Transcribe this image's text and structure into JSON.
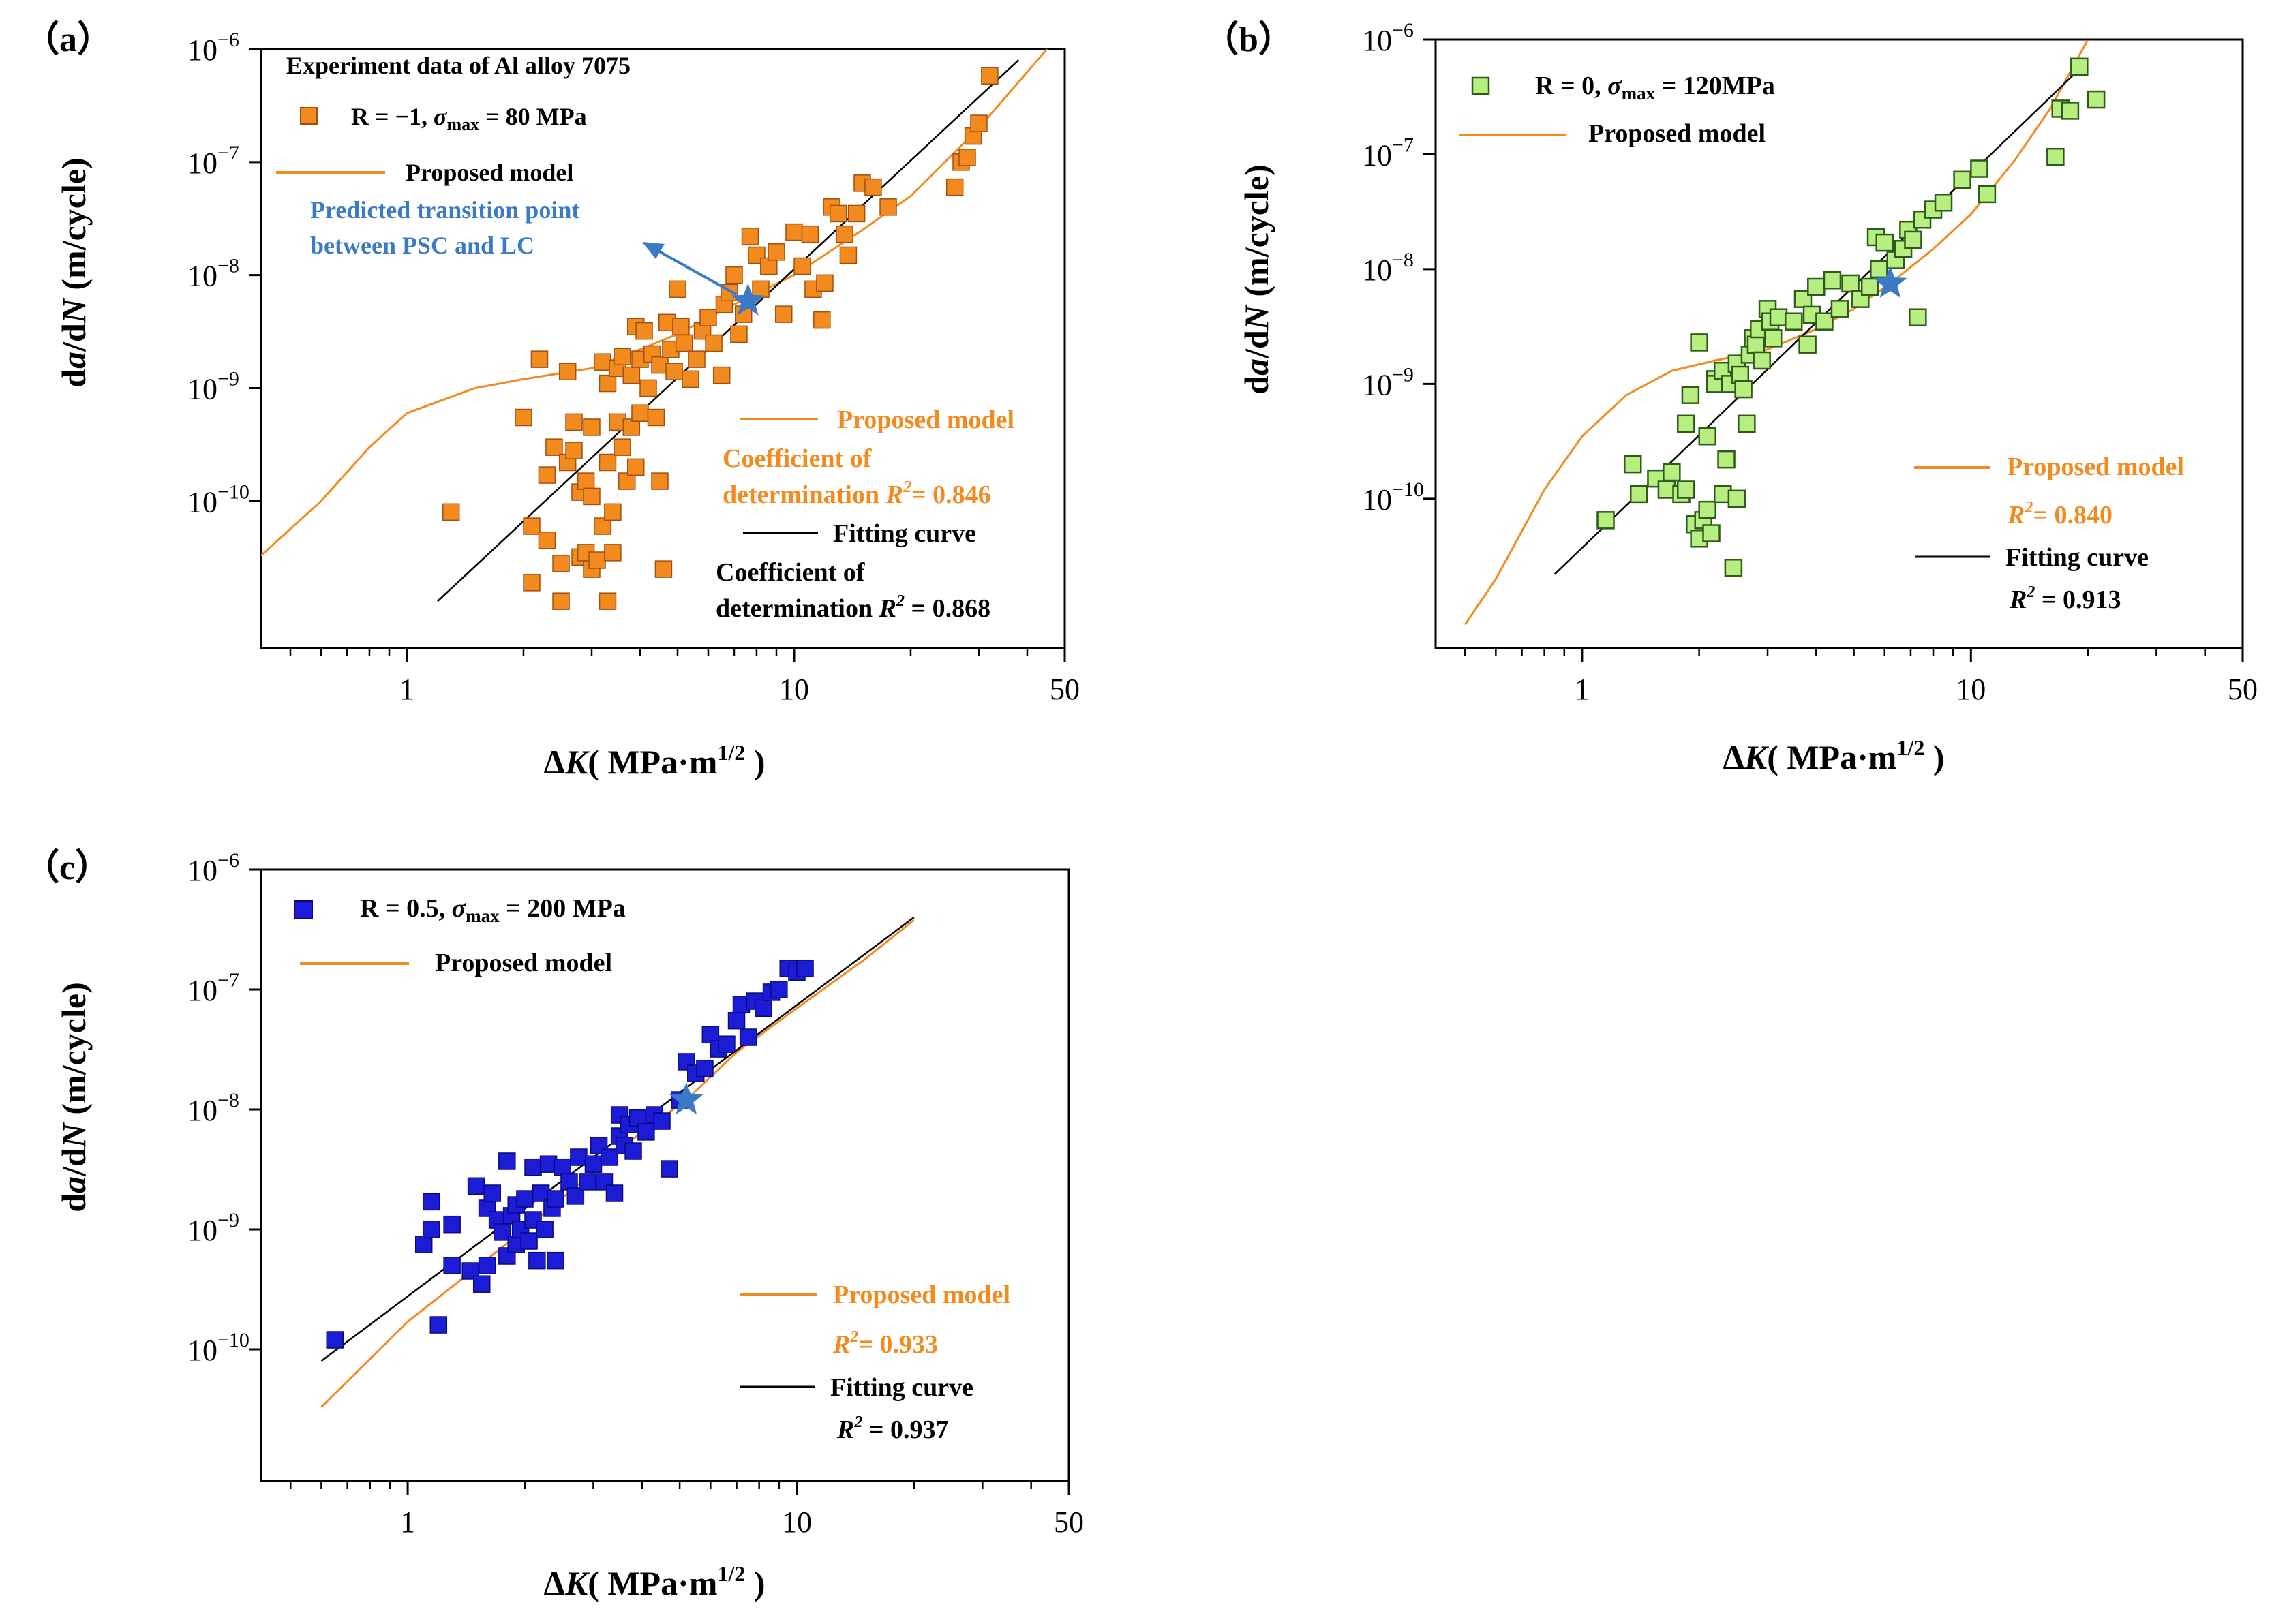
{
  "figure": {
    "x_unit_open": "( MPa·m",
    "x_unit_exp": "1/2",
    "x_unit_close": " )"
  },
  "chart_data": [
    {
      "id": "a",
      "panel_label": "（a）",
      "type": "scatter",
      "xscale": "log",
      "yscale": "log",
      "xlim": [
        0.42,
        50
      ],
      "ylim": [
        5e-12,
        1e-06
      ],
      "x_tick_labels": [
        "1",
        "10",
        "50"
      ],
      "y_tick_labels": [
        "10",
        "10",
        "10",
        "10",
        "10",
        "10"
      ],
      "y_tick_exponents": [
        "−6",
        "−7",
        "−8",
        "−9",
        "−10",
        ""
      ],
      "y_tick_values": [
        1e-06,
        1e-07,
        1e-08,
        1e-09,
        1e-10
      ],
      "marker_color": "#f28a1e",
      "marker_filled": true,
      "legend_header": "Experiment data of Al alloy 7075",
      "legend_series_main": "R = −1, ",
      "legend_series_sigma": "σ",
      "legend_series_sub": "max",
      "legend_series_tail": " = 80  MPa",
      "legend_model": "Proposed model",
      "annotation_text_1": "Predicted transition point",
      "annotation_text_2": "between PSC and LC",
      "model_label": "Proposed model",
      "model_r2_line1": "Coefficient of",
      "model_r2_line2_prefix": "determination ",
      "model_r2_r": "R",
      "model_r2_sup": "2",
      "model_r2_value": "= 0.846",
      "fit_label": "Fitting curve",
      "fit_r2_line1": "Coefficient of",
      "fit_r2_line2_prefix": "determination ",
      "fit_r2_r": "R",
      "fit_r2_sup": "2",
      "fit_r2_value": " = 0.868",
      "transition_point": [
        7.6,
        5.9e-09
      ],
      "fitting_curve": [
        [
          1.2,
          1.3e-11
        ],
        [
          38,
          8e-07
        ]
      ],
      "proposed_model": [
        [
          0.42,
          3.3e-11
        ],
        [
          0.6,
          1e-10
        ],
        [
          0.8,
          3e-10
        ],
        [
          1.0,
          6e-10
        ],
        [
          1.5,
          1e-09
        ],
        [
          2.0,
          1.2e-09
        ],
        [
          3.0,
          1.5e-09
        ],
        [
          4.0,
          2.2e-09
        ],
        [
          5.0,
          3e-09
        ],
        [
          7.0,
          5.5e-09
        ],
        [
          10,
          1e-08
        ],
        [
          15,
          2.5e-08
        ],
        [
          20,
          5e-08
        ],
        [
          30,
          2e-07
        ],
        [
          45,
          1e-06
        ]
      ],
      "points": [
        [
          1.3,
          8e-11
        ],
        [
          2.0,
          5.5e-10
        ],
        [
          2.1,
          6e-11
        ],
        [
          2.1,
          1.9e-11
        ],
        [
          2.2,
          1.8e-09
        ],
        [
          2.3,
          1.7e-10
        ],
        [
          2.3,
          4.5e-11
        ],
        [
          2.4,
          3e-10
        ],
        [
          2.5,
          1.3e-11
        ],
        [
          2.5,
          2.8e-11
        ],
        [
          2.6,
          2.2e-10
        ],
        [
          2.6,
          1.4e-09
        ],
        [
          2.7,
          2.8e-10
        ],
        [
          2.7,
          5e-10
        ],
        [
          2.8,
          3.2e-11
        ],
        [
          2.8,
          1.2e-10
        ],
        [
          2.9,
          3.5e-11
        ],
        [
          2.9,
          1.5e-10
        ],
        [
          3.0,
          2.5e-11
        ],
        [
          3.0,
          4.5e-10
        ],
        [
          3.0,
          1.1e-10
        ],
        [
          3.1,
          3e-11
        ],
        [
          3.2,
          1.7e-09
        ],
        [
          3.2,
          6e-11
        ],
        [
          3.3,
          1.1e-09
        ],
        [
          3.3,
          2.2e-10
        ],
        [
          3.3,
          1.3e-11
        ],
        [
          3.4,
          3.5e-11
        ],
        [
          3.4,
          8e-11
        ],
        [
          3.5,
          5e-10
        ],
        [
          3.5,
          1.5e-09
        ],
        [
          3.6,
          1.9e-09
        ],
        [
          3.6,
          3e-10
        ],
        [
          3.7,
          1.5e-10
        ],
        [
          3.8,
          4.5e-10
        ],
        [
          3.8,
          1.3e-09
        ],
        [
          3.9,
          3.5e-09
        ],
        [
          3.9,
          2e-10
        ],
        [
          4.0,
          6e-10
        ],
        [
          4.0,
          1.8e-09
        ],
        [
          4.1,
          3.2e-09
        ],
        [
          4.2,
          1e-09
        ],
        [
          4.3,
          2e-09
        ],
        [
          4.4,
          5.5e-10
        ],
        [
          4.5,
          1.6e-09
        ],
        [
          4.5,
          1.5e-10
        ],
        [
          4.6,
          2.5e-11
        ],
        [
          4.7,
          3.8e-09
        ],
        [
          4.8,
          2.2e-09
        ],
        [
          4.9,
          1.4e-09
        ],
        [
          5.0,
          7.5e-09
        ],
        [
          5.1,
          3.5e-09
        ],
        [
          5.2,
          2.5e-09
        ],
        [
          5.4,
          1.2e-09
        ],
        [
          5.6,
          1.8e-09
        ],
        [
          5.8,
          3.2e-09
        ],
        [
          6.0,
          4.2e-09
        ],
        [
          6.2,
          2.5e-09
        ],
        [
          6.5,
          1.3e-09
        ],
        [
          6.6,
          5.5e-09
        ],
        [
          6.8,
          7e-09
        ],
        [
          7.0,
          1e-08
        ],
        [
          7.2,
          3e-09
        ],
        [
          7.4,
          4.5e-09
        ],
        [
          7.7,
          2.2e-08
        ],
        [
          8.0,
          1.5e-08
        ],
        [
          8.2,
          7.5e-09
        ],
        [
          8.6,
          1.2e-08
        ],
        [
          9.0,
          1.6e-08
        ],
        [
          9.4,
          4.5e-09
        ],
        [
          10,
          2.4e-08
        ],
        [
          10.5,
          1.2e-08
        ],
        [
          11,
          2.3e-08
        ],
        [
          11.2,
          7.5e-09
        ],
        [
          11.8,
          4e-09
        ],
        [
          12.0,
          8.5e-09
        ],
        [
          12.5,
          4e-08
        ],
        [
          13,
          3.5e-08
        ],
        [
          13.5,
          2.3e-08
        ],
        [
          13.8,
          1.5e-08
        ],
        [
          14.5,
          3.5e-08
        ],
        [
          15,
          6.5e-08
        ],
        [
          16,
          6e-08
        ],
        [
          17.5,
          4e-08
        ],
        [
          26,
          6e-08
        ],
        [
          27,
          1e-07
        ],
        [
          28,
          1.1e-07
        ],
        [
          29,
          1.7e-07
        ],
        [
          30,
          2.2e-07
        ],
        [
          32,
          5.8e-07
        ]
      ]
    },
    {
      "id": "b",
      "panel_label": "（b）",
      "type": "scatter",
      "xscale": "log",
      "yscale": "log",
      "xlim": [
        0.42,
        50
      ],
      "ylim": [
        5e-12,
        1e-06
      ],
      "x_tick_labels": [
        "1",
        "10",
        "50"
      ],
      "y_tick_labels": [
        "10",
        "10",
        "10",
        "10",
        "10"
      ],
      "y_tick_exponents": [
        "−6",
        "−7",
        "−8",
        "−9",
        "−10"
      ],
      "y_tick_values": [
        1e-06,
        1e-07,
        1e-08,
        1e-09,
        1e-10
      ],
      "marker_color": "#b7ee80",
      "marker_filled": false,
      "legend_series_main": "R = 0, ",
      "legend_series_sigma": "σ",
      "legend_series_sub": "max",
      "legend_series_tail": " = 120MPa",
      "legend_model": "Proposed model",
      "model_label": "Proposed model",
      "model_r2_r": "R",
      "model_r2_sup": "2",
      "model_r2_value": "= 0.840",
      "fit_label": "Fitting curve",
      "fit_r2_r": "R",
      "fit_r2_sup": "2",
      "fit_r2_value": " = 0.913",
      "transition_point": [
        6.2,
        7.5e-09
      ],
      "fitting_curve": [
        [
          0.85,
          2.2e-11
        ],
        [
          19.5,
          6e-07
        ]
      ],
      "proposed_model": [
        [
          0.5,
          8e-12
        ],
        [
          0.6,
          2e-11
        ],
        [
          0.8,
          1.2e-10
        ],
        [
          1.0,
          3.5e-10
        ],
        [
          1.3,
          8e-10
        ],
        [
          1.7,
          1.3e-09
        ],
        [
          2.2,
          1.6e-09
        ],
        [
          3.0,
          2e-09
        ],
        [
          4.0,
          3e-09
        ],
        [
          5.0,
          4.5e-09
        ],
        [
          6.2,
          7.5e-09
        ],
        [
          8.0,
          1.5e-08
        ],
        [
          10,
          3e-08
        ],
        [
          13,
          9e-08
        ],
        [
          16,
          2.5e-07
        ],
        [
          20,
          1e-06
        ]
      ],
      "points": [
        [
          1.15,
          6.5e-11
        ],
        [
          1.35,
          2e-10
        ],
        [
          1.4,
          1.1e-10
        ],
        [
          1.55,
          1.5e-10
        ],
        [
          1.65,
          1.2e-10
        ],
        [
          1.7,
          1.7e-10
        ],
        [
          1.8,
          1.1e-10
        ],
        [
          1.85,
          1.2e-10
        ],
        [
          1.85,
          4.5e-10
        ],
        [
          1.9,
          8e-10
        ],
        [
          1.95,
          6e-11
        ],
        [
          2.0,
          4.5e-11
        ],
        [
          2.0,
          2.3e-09
        ],
        [
          2.05,
          6.5e-11
        ],
        [
          2.1,
          8e-11
        ],
        [
          2.1,
          3.5e-10
        ],
        [
          2.15,
          5e-11
        ],
        [
          2.2,
          1.1e-09
        ],
        [
          2.2,
          1e-09
        ],
        [
          2.3,
          1.1e-10
        ],
        [
          2.3,
          1.3e-09
        ],
        [
          2.35,
          2.2e-10
        ],
        [
          2.4,
          1e-09
        ],
        [
          2.45,
          2.5e-11
        ],
        [
          2.5,
          1.5e-09
        ],
        [
          2.5,
          1e-10
        ],
        [
          2.55,
          1.2e-09
        ],
        [
          2.6,
          9e-10
        ],
        [
          2.65,
          4.5e-10
        ],
        [
          2.7,
          1.8e-09
        ],
        [
          2.75,
          2.5e-09
        ],
        [
          2.8,
          2.2e-09
        ],
        [
          2.85,
          3e-09
        ],
        [
          2.9,
          1.6e-09
        ],
        [
          3.0,
          4.5e-09
        ],
        [
          3.05,
          3.5e-09
        ],
        [
          3.1,
          2.5e-09
        ],
        [
          3.2,
          3.8e-09
        ],
        [
          3.5,
          3.5e-09
        ],
        [
          3.7,
          5.5e-09
        ],
        [
          3.8,
          2.2e-09
        ],
        [
          3.9,
          4e-09
        ],
        [
          4.0,
          7e-09
        ],
        [
          4.2,
          3.5e-09
        ],
        [
          4.4,
          8e-09
        ],
        [
          4.6,
          4.5e-09
        ],
        [
          4.9,
          7.5e-09
        ],
        [
          5.2,
          5.5e-09
        ],
        [
          5.5,
          7e-09
        ],
        [
          5.7,
          1.9e-08
        ],
        [
          5.8,
          1e-08
        ],
        [
          6.0,
          1.7e-08
        ],
        [
          6.4,
          1.2e-08
        ],
        [
          6.7,
          1.5e-08
        ],
        [
          6.9,
          2.2e-08
        ],
        [
          7.1,
          1.8e-08
        ],
        [
          7.3,
          3.8e-09
        ],
        [
          7.5,
          2.7e-08
        ],
        [
          8.0,
          3.3e-08
        ],
        [
          8.5,
          3.8e-08
        ],
        [
          9.5,
          6e-08
        ],
        [
          10.5,
          7.5e-08
        ],
        [
          11,
          4.5e-08
        ],
        [
          16.5,
          9.5e-08
        ],
        [
          17,
          2.5e-07
        ],
        [
          18,
          2.4e-07
        ],
        [
          19,
          5.8e-07
        ],
        [
          21,
          3e-07
        ]
      ]
    },
    {
      "id": "c",
      "panel_label": "（c）",
      "type": "scatter",
      "xscale": "log",
      "yscale": "log",
      "xlim": [
        0.42,
        50
      ],
      "ylim": [
        8e-12,
        1e-06
      ],
      "x_tick_labels": [
        "1",
        "10",
        "50"
      ],
      "y_tick_labels": [
        "10",
        "10",
        "10",
        "10",
        "10"
      ],
      "y_tick_exponents": [
        "−6",
        "−7",
        "−8",
        "−9",
        "−10"
      ],
      "y_tick_values": [
        1e-06,
        1e-07,
        1e-08,
        1e-09,
        1e-10
      ],
      "marker_color": "#1c1cd6",
      "marker_filled": true,
      "legend_series_main": "R = 0.5, ",
      "legend_series_sigma": "σ",
      "legend_series_sub": "max",
      "legend_series_tail": " = 200 MPa",
      "legend_model": "Proposed model",
      "model_label": "Proposed model",
      "model_r2_r": "R",
      "model_r2_sup": "2",
      "model_r2_value": "= 0.933",
      "fit_label": "Fitting curve",
      "fit_r2_r": "R",
      "fit_r2_sup": "2",
      "fit_r2_value": " = 0.937",
      "transition_point": [
        5.2,
        1.2e-08
      ],
      "fitting_curve": [
        [
          0.6,
          8e-11
        ],
        [
          20,
          4e-07
        ]
      ],
      "proposed_model": [
        [
          0.6,
          3.3e-11
        ],
        [
          1.0,
          1.7e-10
        ],
        [
          2.0,
          1e-09
        ],
        [
          3.0,
          3e-09
        ],
        [
          4.0,
          6.5e-09
        ],
        [
          5.2,
          1.2e-08
        ],
        [
          7.0,
          3e-08
        ],
        [
          10,
          7e-08
        ],
        [
          15,
          1.8e-07
        ],
        [
          20,
          3.8e-07
        ]
      ],
      "points": [
        [
          0.65,
          1.2e-10
        ],
        [
          1.1,
          7.5e-10
        ],
        [
          1.15,
          1e-09
        ],
        [
          1.15,
          1.7e-09
        ],
        [
          1.2,
          1.6e-10
        ],
        [
          1.3,
          5e-10
        ],
        [
          1.3,
          1.1e-09
        ],
        [
          1.45,
          4.5e-10
        ],
        [
          1.5,
          2.3e-09
        ],
        [
          1.55,
          3.5e-10
        ],
        [
          1.6,
          1.5e-09
        ],
        [
          1.6,
          5e-10
        ],
        [
          1.65,
          2e-09
        ],
        [
          1.7,
          1.2e-09
        ],
        [
          1.75,
          9.5e-10
        ],
        [
          1.8,
          6e-10
        ],
        [
          1.8,
          3.7e-09
        ],
        [
          1.85,
          1.3e-09
        ],
        [
          1.9,
          1.6e-09
        ],
        [
          1.9,
          7.5e-10
        ],
        [
          1.95,
          1e-09
        ],
        [
          2.0,
          1.8e-09
        ],
        [
          2.05,
          8e-10
        ],
        [
          2.1,
          3.3e-09
        ],
        [
          2.1,
          1.2e-09
        ],
        [
          2.15,
          5.5e-10
        ],
        [
          2.2,
          2e-09
        ],
        [
          2.25,
          1e-09
        ],
        [
          2.3,
          3.5e-09
        ],
        [
          2.35,
          1.5e-09
        ],
        [
          2.4,
          5.5e-10
        ],
        [
          2.4,
          1.8e-09
        ],
        [
          2.5,
          3.3e-09
        ],
        [
          2.6,
          2.5e-09
        ],
        [
          2.7,
          1.9e-09
        ],
        [
          2.75,
          4e-09
        ],
        [
          2.9,
          2.5e-09
        ],
        [
          3.0,
          3.5e-09
        ],
        [
          3.1,
          5e-09
        ],
        [
          3.2,
          2.5e-09
        ],
        [
          3.3,
          4e-09
        ],
        [
          3.4,
          2e-09
        ],
        [
          3.5,
          9e-09
        ],
        [
          3.5,
          6e-09
        ],
        [
          3.6,
          5e-09
        ],
        [
          3.7,
          7.5e-09
        ],
        [
          3.8,
          4.5e-09
        ],
        [
          3.9,
          8.5e-09
        ],
        [
          4.1,
          6.5e-09
        ],
        [
          4.3,
          9e-09
        ],
        [
          4.5,
          8e-09
        ],
        [
          4.7,
          3.2e-09
        ],
        [
          5.0,
          1.2e-08
        ],
        [
          5.2,
          2.5e-08
        ],
        [
          5.5,
          2e-08
        ],
        [
          5.8,
          2.2e-08
        ],
        [
          6.0,
          4.2e-08
        ],
        [
          6.3,
          3.2e-08
        ],
        [
          6.6,
          3.5e-08
        ],
        [
          7.0,
          5.5e-08
        ],
        [
          7.2,
          7.5e-08
        ],
        [
          7.5,
          4e-08
        ],
        [
          7.8,
          8e-08
        ],
        [
          8.2,
          7e-08
        ],
        [
          8.6,
          9.5e-08
        ],
        [
          9.0,
          1e-07
        ],
        [
          9.5,
          1.5e-07
        ],
        [
          10,
          1.4e-07
        ],
        [
          10.5,
          1.5e-07
        ]
      ]
    }
  ]
}
